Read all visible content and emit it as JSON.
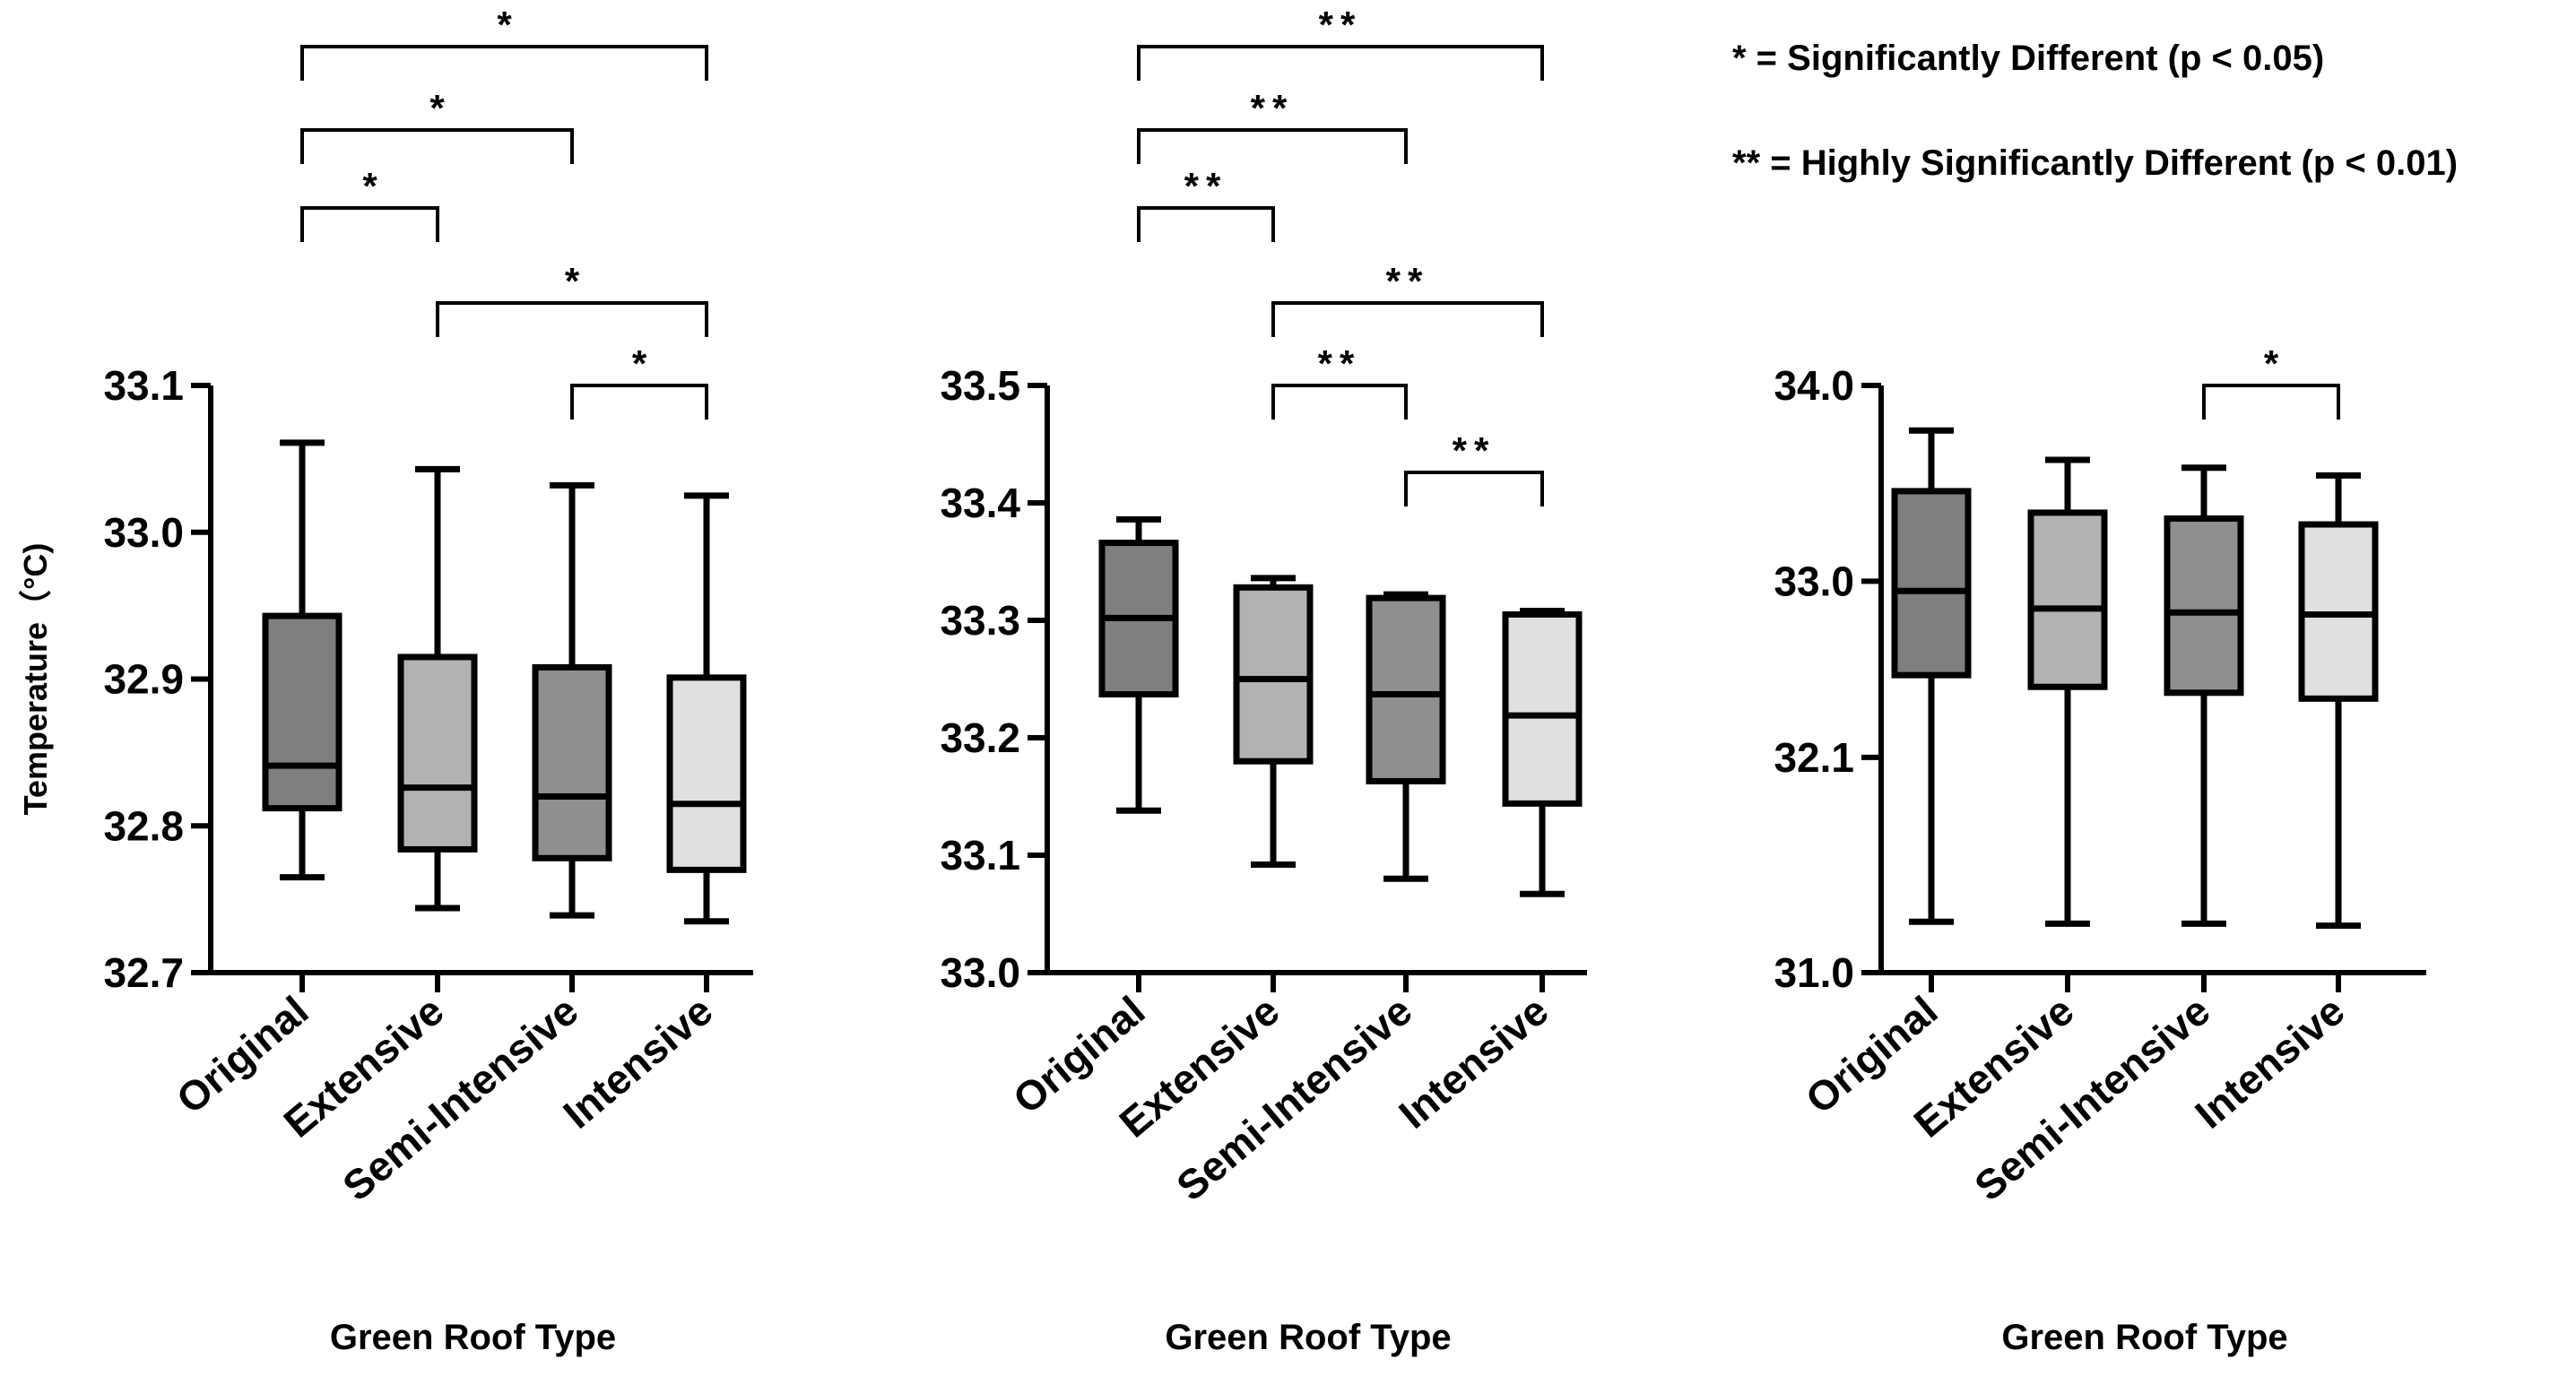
{
  "legend": [
    "* = Significantly Different (p < 0.05)",
    "** = Highly Significantly Different (p < 0.01)"
  ],
  "chart_data": [
    {
      "type": "box",
      "categories": [
        "Original",
        "Extensive",
        "Semi-Intensive",
        "Intensive"
      ],
      "xlabel": "Green Roof Type",
      "ylabel": "Temperature（°C)",
      "ylim": [
        32.7,
        33.1
      ],
      "yticks": [
        "32.7",
        "32.8",
        "32.9",
        "33.0",
        "33.1"
      ],
      "colors": [
        "#7f7f7f",
        "#b2b2b2",
        "#8f8f8f",
        "#e0e0e0"
      ],
      "boxes": [
        {
          "min": 32.765,
          "q1": 32.812,
          "median": 32.841,
          "q3": 32.943,
          "max": 33.061
        },
        {
          "min": 32.744,
          "q1": 32.784,
          "median": 32.826,
          "q3": 32.915,
          "max": 33.043
        },
        {
          "min": 32.739,
          "q1": 32.778,
          "median": 32.82,
          "q3": 32.908,
          "max": 33.032
        },
        {
          "min": 32.735,
          "q1": 32.77,
          "median": 32.815,
          "q3": 32.901,
          "max": 33.025
        }
      ],
      "significance": [
        {
          "from": 0,
          "to": 3,
          "label": "*"
        },
        {
          "from": 0,
          "to": 2,
          "label": "*"
        },
        {
          "from": 0,
          "to": 1,
          "label": "*"
        },
        {
          "from": 1,
          "to": 3,
          "label": "*"
        },
        {
          "from": 2,
          "to": 3,
          "label": "*"
        }
      ]
    },
    {
      "type": "box",
      "categories": [
        "Original",
        "Extensive",
        "Semi-Intensive",
        "Intensive"
      ],
      "xlabel": "Green Roof Type",
      "ylabel": "",
      "ylim": [
        33.0,
        33.5
      ],
      "yticks": [
        "33.0",
        "33.1",
        "33.2",
        "33.3",
        "33.4",
        "33.5"
      ],
      "colors": [
        "#7f7f7f",
        "#b2b2b2",
        "#8f8f8f",
        "#e0e0e0"
      ],
      "boxes": [
        {
          "min": 33.138,
          "q1": 33.237,
          "median": 33.302,
          "q3": 33.366,
          "max": 33.386
        },
        {
          "min": 33.092,
          "q1": 33.18,
          "median": 33.25,
          "q3": 33.328,
          "max": 33.336
        },
        {
          "min": 33.08,
          "q1": 33.163,
          "median": 33.237,
          "q3": 33.319,
          "max": 33.322
        },
        {
          "min": 33.067,
          "q1": 33.144,
          "median": 33.219,
          "q3": 33.305,
          "max": 33.308
        }
      ],
      "significance": [
        {
          "from": 0,
          "to": 3,
          "label": "**"
        },
        {
          "from": 0,
          "to": 2,
          "label": "**"
        },
        {
          "from": 0,
          "to": 1,
          "label": "**"
        },
        {
          "from": 1,
          "to": 3,
          "label": "**"
        },
        {
          "from": 1,
          "to": 2,
          "label": "**"
        },
        {
          "from": 2,
          "to": 3,
          "label": "**"
        }
      ]
    },
    {
      "type": "box",
      "categories": [
        "Original",
        "Extensive",
        "Semi-Intensive",
        "Intensive"
      ],
      "xlabel": "Green Roof Type",
      "ylabel": "",
      "ylim": [
        31.0,
        34.0
      ],
      "yticks": [
        "31.0",
        "32.1",
        "33.0",
        "34.0"
      ],
      "colors": [
        "#7f7f7f",
        "#b2b2b2",
        "#8f8f8f",
        "#e0e0e0"
      ],
      "boxes": [
        {
          "min": 31.26,
          "q1": 32.52,
          "median": 32.95,
          "q3": 33.46,
          "max": 33.77
        },
        {
          "min": 31.25,
          "q1": 32.46,
          "median": 32.86,
          "q3": 33.35,
          "max": 33.62
        },
        {
          "min": 31.25,
          "q1": 32.43,
          "median": 32.84,
          "q3": 33.32,
          "max": 33.58
        },
        {
          "min": 31.24,
          "q1": 32.4,
          "median": 32.83,
          "q3": 33.29,
          "max": 33.54
        }
      ],
      "significance": [
        {
          "from": 2,
          "to": 3,
          "label": "*"
        }
      ]
    }
  ]
}
